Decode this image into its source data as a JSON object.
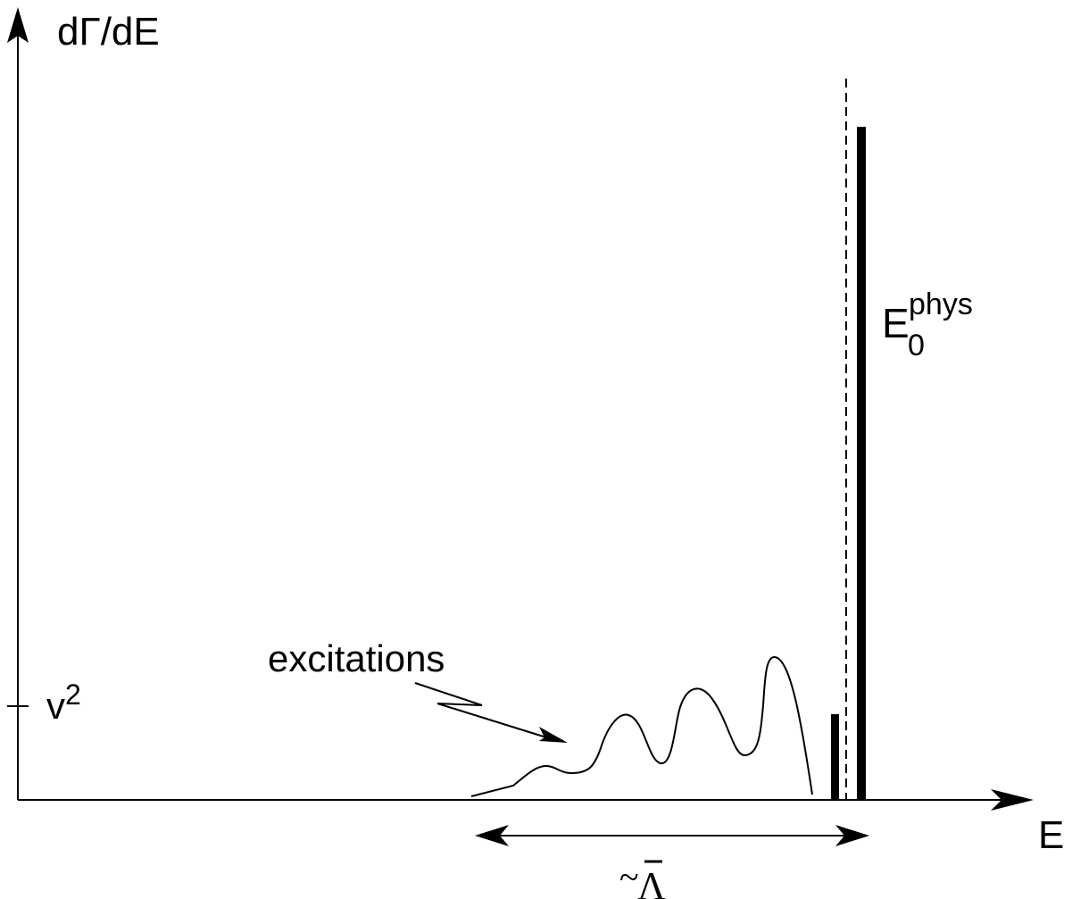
{
  "diagram": {
    "y_axis_label": "dΓ/dE",
    "x_axis_label": "E",
    "y_tick_label": "v",
    "y_tick_superscript": "2",
    "excitations_label": "excitations",
    "peak_label_main": "E",
    "peak_label_sub": "0",
    "peak_label_sup": "phys",
    "width_label_tilde": "~",
    "width_label_symbol": "Λ"
  },
  "colors": {
    "ink": "#000000",
    "background": "#ffffff"
  }
}
